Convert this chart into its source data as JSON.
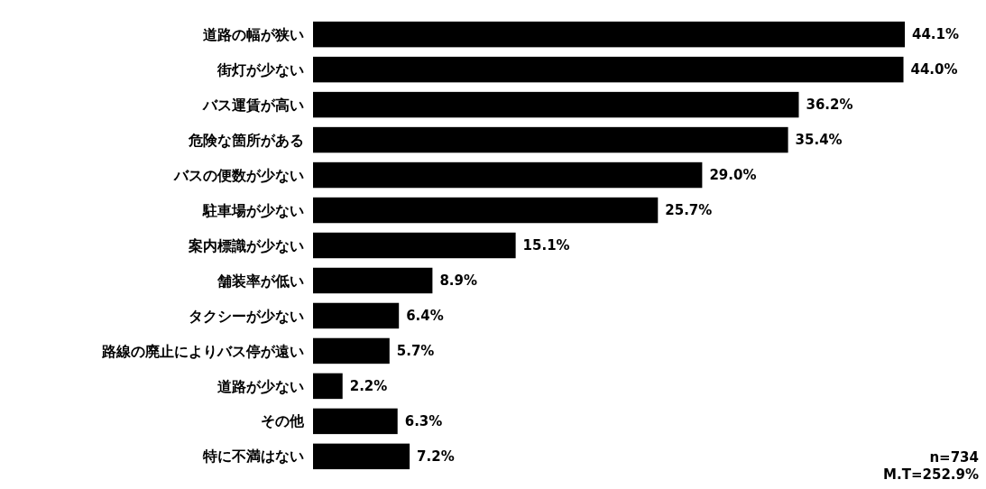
{
  "chart_data": {
    "type": "bar",
    "orientation": "horizontal",
    "categories": [
      "道路の幅が狭い",
      "街灯が少ない",
      "バス運賃が高い",
      "危険な箇所がある",
      "バスの便数が少ない",
      "駐車場が少ない",
      "案内標識が少ない",
      "舗装率が低い",
      "タクシーが少ない",
      "路線の廃止によりバス停が遠い",
      "道路が少ない",
      "その他",
      "特に不満はない"
    ],
    "values": [
      44.1,
      44.0,
      36.2,
      35.4,
      29.0,
      25.7,
      15.1,
      8.9,
      6.4,
      5.7,
      2.2,
      6.3,
      7.2
    ],
    "value_labels": [
      "44.1%",
      "44.0%",
      "36.2%",
      "35.4%",
      "29.0%",
      "25.7%",
      "15.1%",
      "8.9%",
      "6.4%",
      "5.7%",
      "2.2%",
      "6.3%",
      "7.2%"
    ],
    "color": "#000000",
    "annotations": [
      "n=734",
      "M.T=252.9%"
    ]
  }
}
